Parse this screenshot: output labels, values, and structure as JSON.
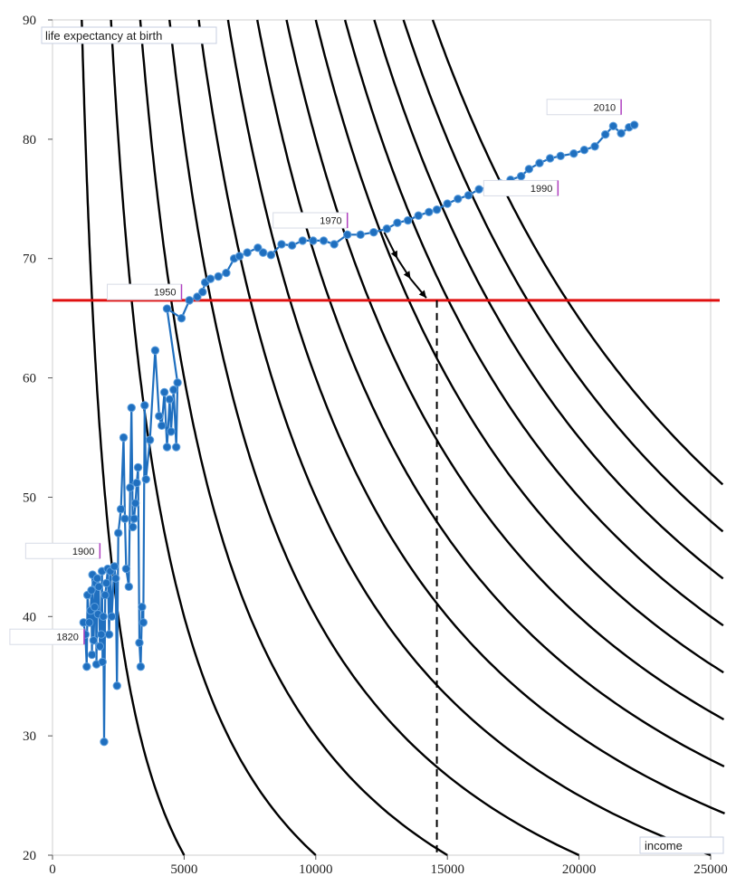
{
  "chart_data": {
    "type": "scatter",
    "title": "",
    "xlabel": "income",
    "ylabel": "life expectancy at birth",
    "xlim": [
      0,
      25000
    ],
    "ylim": [
      20,
      90
    ],
    "x_ticks": [
      "0",
      "5000",
      "10000",
      "15000",
      "20000",
      "25000"
    ],
    "y_ticks": [
      "20",
      "30",
      "40",
      "50",
      "60",
      "70",
      "80",
      "90"
    ],
    "grid": false,
    "series": [
      {
        "points": [
          [
            1180,
            39.5
          ],
          [
            1250,
            38.5
          ],
          [
            1300,
            35.8
          ],
          [
            1330,
            41.8
          ],
          [
            1400,
            39.5
          ],
          [
            1450,
            40.5
          ],
          [
            1480,
            42.2
          ],
          [
            1500,
            36.8
          ],
          [
            1520,
            43.5
          ],
          [
            1560,
            38.0
          ],
          [
            1600,
            40.8
          ],
          [
            1640,
            42.8
          ],
          [
            1670,
            36.0
          ],
          [
            1700,
            43.2
          ],
          [
            1730,
            40.2
          ],
          [
            1760,
            42.5
          ],
          [
            1800,
            37.5
          ],
          [
            1850,
            38.5
          ],
          [
            1880,
            43.8
          ],
          [
            1900,
            36.2
          ],
          [
            1930,
            40.0
          ],
          [
            1960,
            29.5
          ],
          [
            2000,
            41.8
          ],
          [
            2050,
            42.8
          ],
          [
            2100,
            44.0
          ],
          [
            2150,
            38.5
          ],
          [
            2200,
            43.8
          ],
          [
            2250,
            40.0
          ],
          [
            2350,
            44.2
          ],
          [
            2400,
            43.2
          ],
          [
            2450,
            34.2
          ],
          [
            2500,
            47.0
          ],
          [
            2600,
            49.0
          ],
          [
            2700,
            55.0
          ],
          [
            2750,
            48.2
          ],
          [
            2800,
            44.0
          ],
          [
            2900,
            42.5
          ],
          [
            2950,
            50.8
          ],
          [
            3000,
            57.5
          ],
          [
            3050,
            47.5
          ],
          [
            3100,
            48.2
          ],
          [
            3150,
            49.5
          ],
          [
            3200,
            51.2
          ],
          [
            3250,
            52.5
          ],
          [
            3300,
            37.8
          ],
          [
            3350,
            35.8
          ],
          [
            3400,
            40.8
          ],
          [
            3450,
            39.5
          ],
          [
            3500,
            57.7
          ],
          [
            3550,
            51.5
          ],
          [
            3700,
            54.8
          ],
          [
            3900,
            62.3
          ],
          [
            4050,
            56.8
          ],
          [
            4150,
            56.0
          ],
          [
            4250,
            58.8
          ],
          [
            4350,
            54.2
          ],
          [
            4450,
            58.2
          ],
          [
            4500,
            55.5
          ],
          [
            4600,
            59.0
          ],
          [
            4700,
            54.2
          ],
          [
            4750,
            59.6
          ],
          [
            4350,
            65.8
          ],
          [
            4900,
            65.0
          ],
          [
            5200,
            66.5
          ],
          [
            5500,
            66.8
          ],
          [
            5700,
            67.2
          ],
          [
            5800,
            68.0
          ],
          [
            6000,
            68.3
          ],
          [
            6300,
            68.5
          ],
          [
            6600,
            68.8
          ],
          [
            6900,
            70.0
          ],
          [
            7100,
            70.2
          ],
          [
            7400,
            70.5
          ],
          [
            7800,
            70.9
          ],
          [
            8000,
            70.5
          ],
          [
            8300,
            70.3
          ],
          [
            8700,
            71.2
          ],
          [
            9100,
            71.1
          ],
          [
            9500,
            71.5
          ],
          [
            9900,
            71.5
          ],
          [
            10300,
            71.5
          ],
          [
            10700,
            71.2
          ],
          [
            11200,
            72.0
          ],
          [
            11700,
            72.0
          ],
          [
            12200,
            72.2
          ],
          [
            12700,
            72.5
          ],
          [
            13100,
            73.0
          ],
          [
            13500,
            73.2
          ],
          [
            13900,
            73.6
          ],
          [
            14300,
            73.9
          ],
          [
            14600,
            74.1
          ],
          [
            15000,
            74.6
          ],
          [
            15400,
            75.0
          ],
          [
            15800,
            75.3
          ],
          [
            16200,
            75.8
          ],
          [
            16600,
            76.0
          ],
          [
            17000,
            76.3
          ],
          [
            17400,
            76.6
          ],
          [
            17800,
            76.9
          ],
          [
            18100,
            77.5
          ],
          [
            18500,
            78.0
          ],
          [
            18900,
            78.4
          ],
          [
            19300,
            78.6
          ],
          [
            19800,
            78.8
          ],
          [
            20200,
            79.1
          ],
          [
            20600,
            79.4
          ],
          [
            21000,
            80.4
          ],
          [
            21300,
            81.1
          ],
          [
            21600,
            80.5
          ],
          [
            21900,
            81.0
          ],
          [
            22100,
            81.2
          ]
        ]
      }
    ],
    "year_labels": [
      {
        "text": "1820",
        "x": 1200,
        "y": 38.3
      },
      {
        "text": "1900",
        "x": 1800,
        "y": 45.5
      },
      {
        "text": "1950",
        "x": 4900,
        "y": 67.2
      },
      {
        "text": "1970",
        "x": 11200,
        "y": 73.2
      },
      {
        "text": "1990",
        "x": 19200,
        "y": 75.9
      },
      {
        "text": "2010",
        "x": 21600,
        "y": 82.7
      }
    ],
    "iso_curve_constants": [
      100000,
      200000,
      300000,
      400000,
      500000,
      600000,
      700000,
      800000,
      900000,
      1000000,
      1100000,
      1200000,
      1300000
    ],
    "reference_line_y": 66.5,
    "reference_line_color": "#e01010",
    "vertical_dashed_x": 14600,
    "series_color": "#1f6fbf",
    "curve_color": "#000000"
  }
}
